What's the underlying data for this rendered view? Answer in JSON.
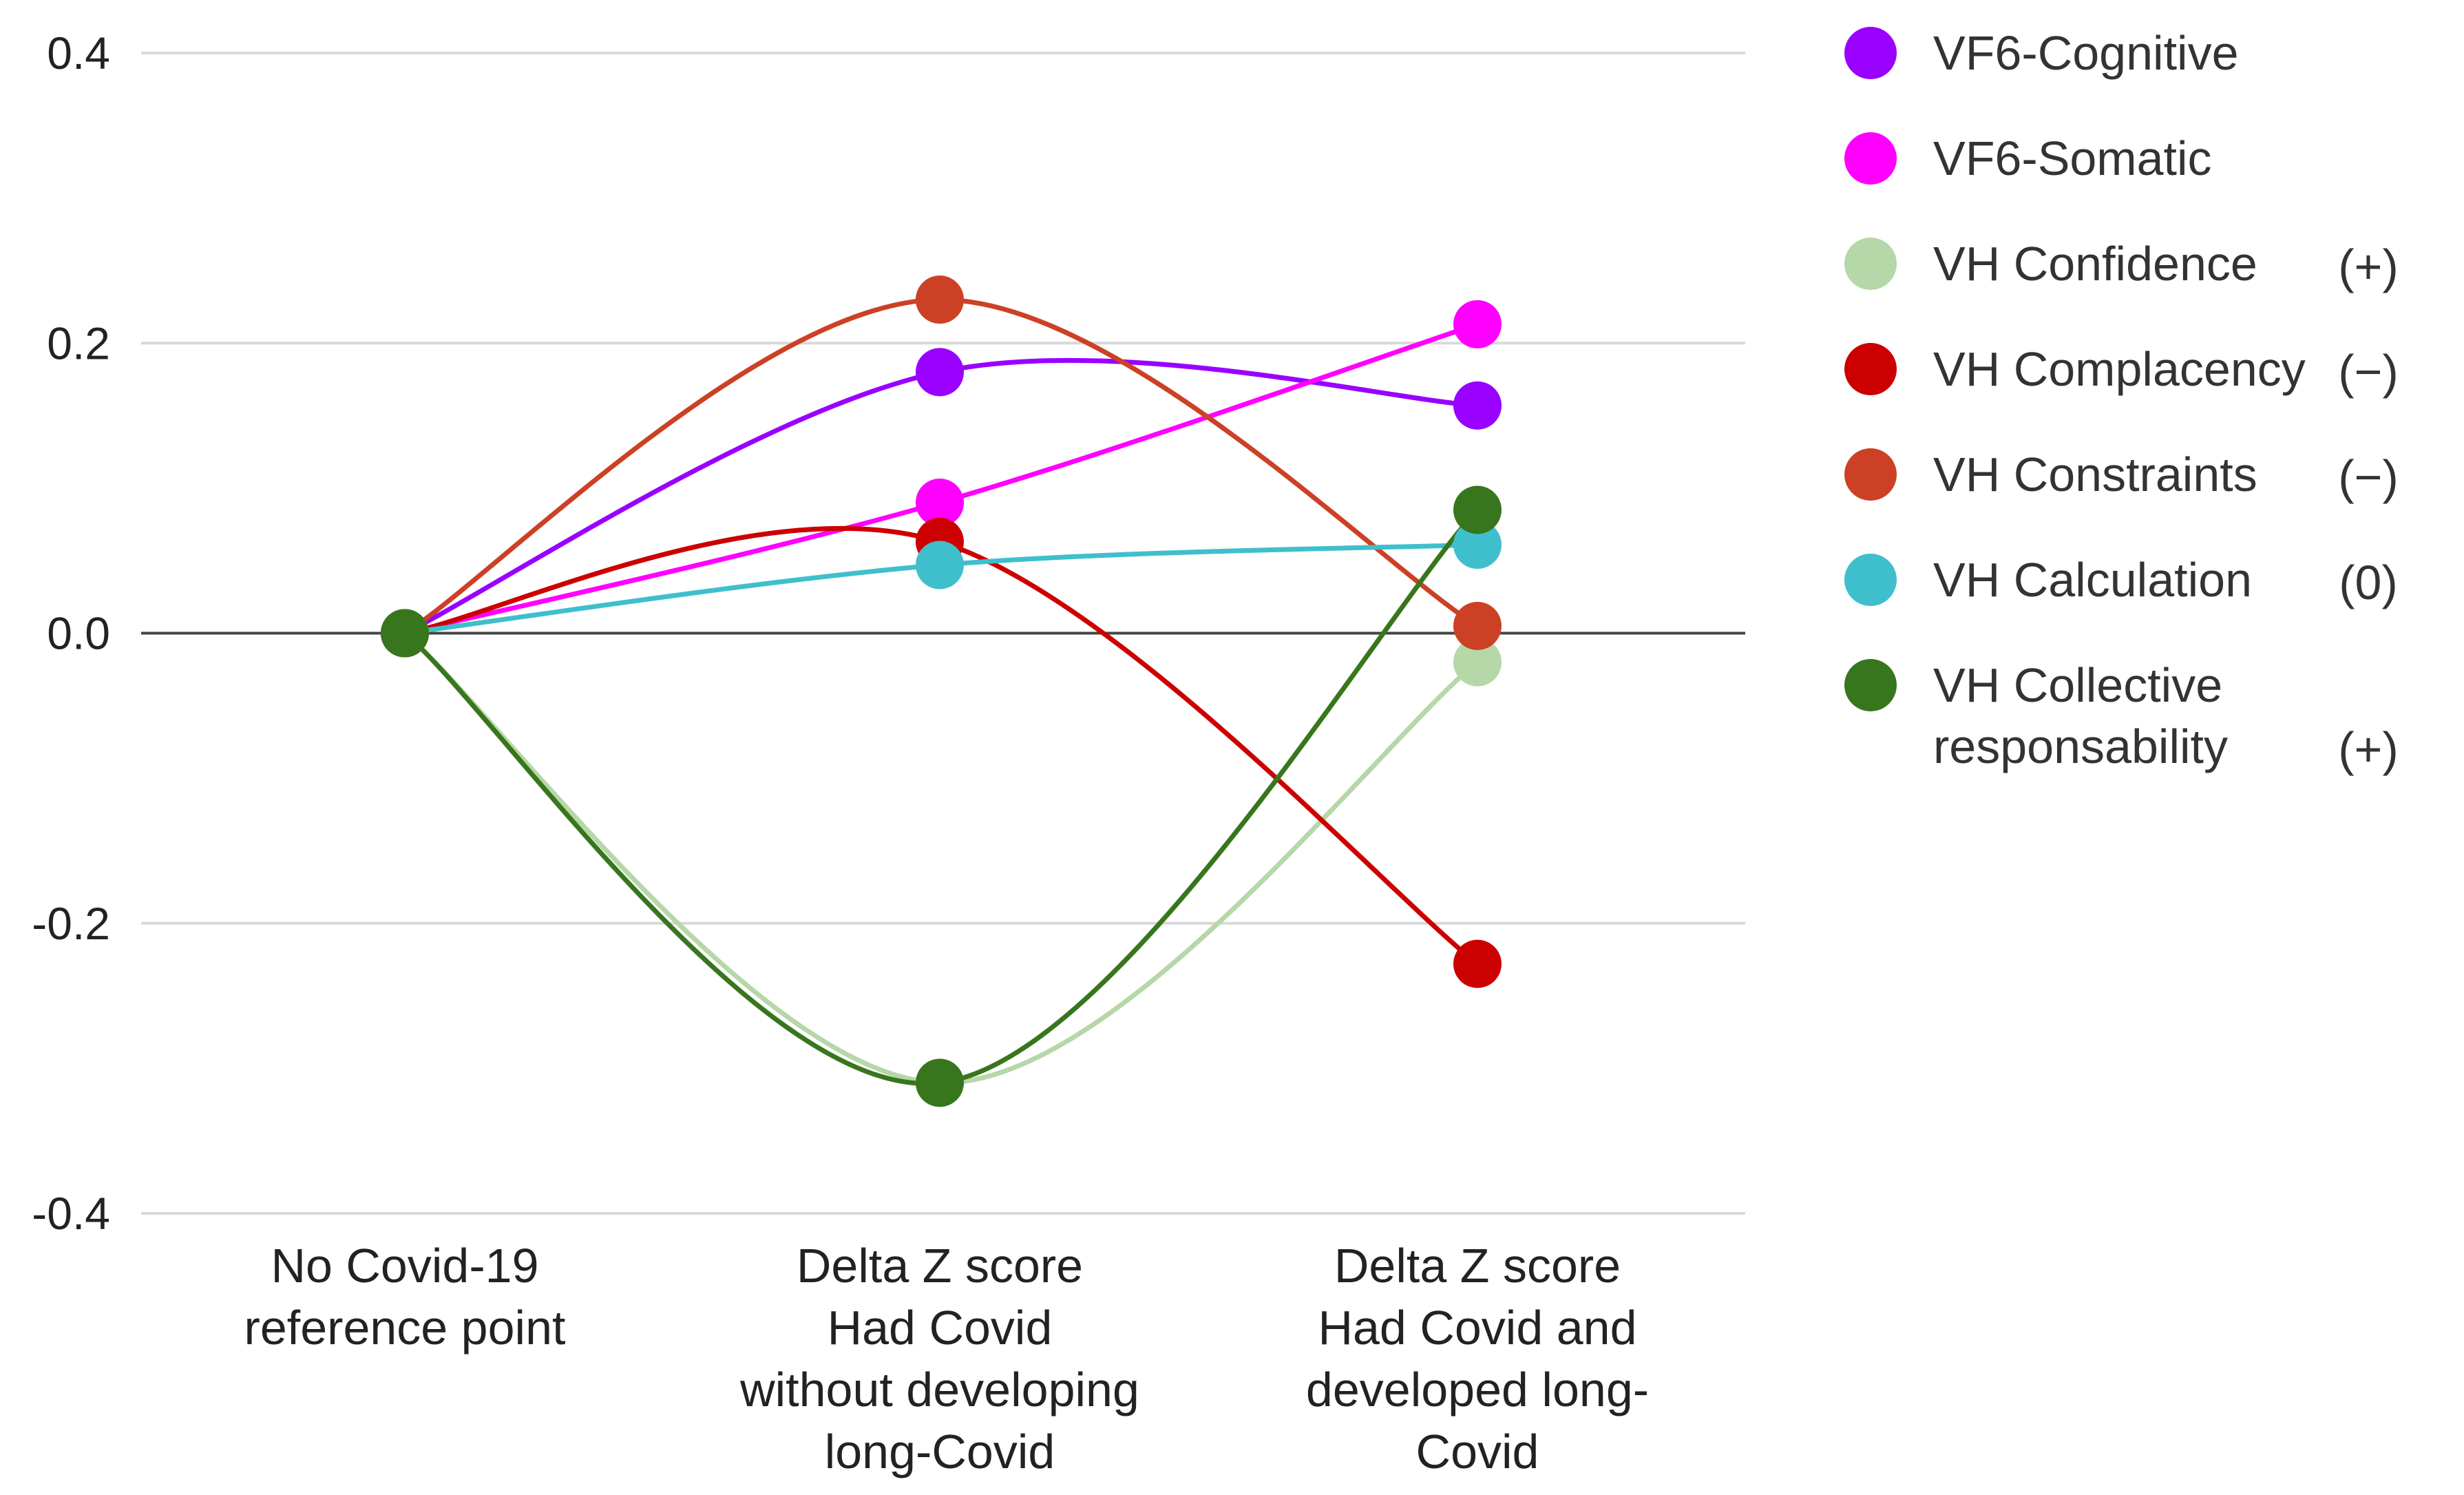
{
  "chart_data": {
    "type": "line",
    "title": "",
    "xlabel": "",
    "ylabel": "",
    "ylim": [
      -0.4,
      0.4
    ],
    "yticks": [
      0.4,
      0.2,
      0.0,
      -0.2,
      -0.4
    ],
    "ytick_labels": [
      "0.4",
      "0.2",
      "0.0",
      "-0.2",
      "-0.4"
    ],
    "grid": true,
    "legend_position": "right",
    "categories": [
      [
        "No Covid-19",
        "reference point"
      ],
      [
        "Delta  Z score",
        "Had Covid",
        "without developing",
        "long-Covid"
      ],
      [
        "Delta Z score",
        "Had Covid and",
        "developed long-",
        "Covid"
      ]
    ],
    "series": [
      {
        "name": "VF6-Cognitive",
        "color": "#9900ff",
        "values": [
          0.0,
          0.18,
          0.157
        ]
      },
      {
        "name": "VF6-Somatic",
        "color": "#ff00ff",
        "values": [
          0.0,
          0.09,
          0.213
        ]
      },
      {
        "name": "VH Confidence",
        "sign": "(+)",
        "color": "#b6d7a8",
        "values": [
          0.0,
          -0.31,
          -0.02
        ]
      },
      {
        "name": "VH Complacency",
        "sign": "(−)",
        "color": "#cc0000",
        "values": [
          0.0,
          0.063,
          -0.228
        ]
      },
      {
        "name": "VH Constraints",
        "sign": "(−)",
        "color": "#cc4125",
        "values": [
          0.0,
          0.23,
          0.005
        ]
      },
      {
        "name": "VH Calculation",
        "sign": "(0)",
        "color": "#3fbfcc",
        "values": [
          0.0,
          0.047,
          0.061
        ]
      },
      {
        "name": "VH Collective",
        "name_line2": "responsability",
        "sign": "(+)",
        "color": "#38761d",
        "values": [
          0.0,
          -0.31,
          0.085
        ]
      }
    ]
  }
}
